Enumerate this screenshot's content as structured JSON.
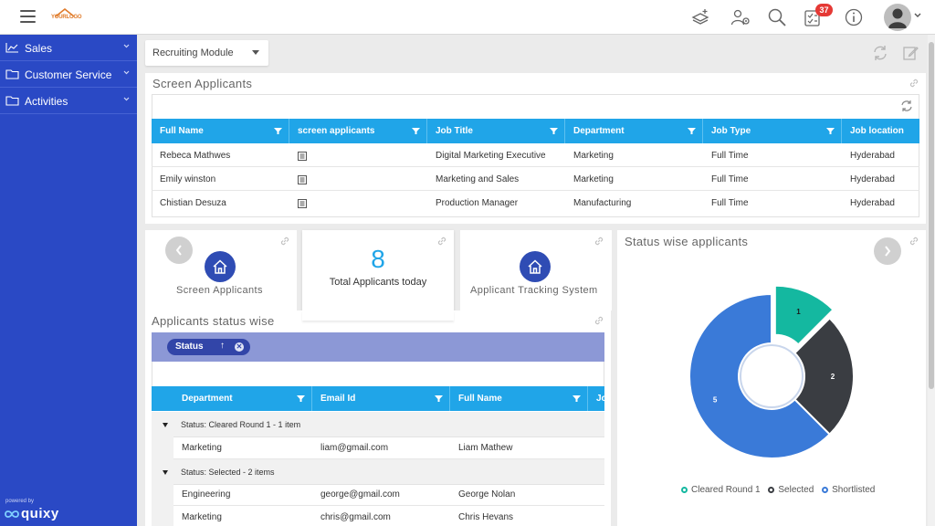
{
  "topbar": {
    "logo_text": "YOURLOGO",
    "notification_count": "37",
    "icons": [
      "menu-icon",
      "layers-add-icon",
      "users-settings-icon",
      "search-icon",
      "tasks-icon",
      "info-icon",
      "avatar-icon"
    ]
  },
  "sidebar": {
    "items": [
      {
        "label": "Sales",
        "icon": "chart-line-icon"
      },
      {
        "label": "Customer Service",
        "icon": "folder-icon"
      },
      {
        "label": "Activities",
        "icon": "folder-icon"
      }
    ],
    "powered_by": "powered by",
    "brand": "quixy"
  },
  "module_select": {
    "value": "Recruiting Module"
  },
  "screen_applicants": {
    "title": "Screen Applicants",
    "columns": [
      "Full Name",
      "screen applicants",
      "Job Title",
      "Department",
      "Job Type",
      "Job location"
    ],
    "rows": [
      {
        "full_name": "Rebeca Mathwes",
        "job_title": "Digital Marketing Executive",
        "department": "Marketing",
        "job_type": "Full Time",
        "job_location": "Hyderabad"
      },
      {
        "full_name": "Emily winston",
        "job_title": "Marketing and Sales",
        "department": "Marketing",
        "job_type": "Full Time",
        "job_location": "Hyderabad"
      },
      {
        "full_name": "Chistian Desuza",
        "job_title": "Production Manager",
        "department": "Manufacturing",
        "job_type": "Full Time",
        "job_location": "Hyderabad"
      }
    ]
  },
  "tiles": {
    "screen_applicants_label": "Screen Applicants",
    "total_count": "8",
    "total_label": "Total Applicants today",
    "tracking_label": "Applicant Tracking System"
  },
  "status_grid": {
    "title": "Applicants status wise",
    "group_chip": "Status",
    "columns": [
      "Department",
      "Email Id",
      "Full Name",
      "Jo"
    ],
    "groups": [
      {
        "label": "Status: Cleared Round 1 - 1 item",
        "rows": [
          {
            "department": "Marketing",
            "email": "liam@gmail.com",
            "full_name": "Liam Mathew"
          }
        ]
      },
      {
        "label": "Status: Selected - 2 items",
        "rows": [
          {
            "department": "Engineering",
            "email": "george@gmail.com",
            "full_name": "George Nolan"
          },
          {
            "department": "Marketing",
            "email": "chris@gmail.com",
            "full_name": "Chris Hevans"
          }
        ]
      }
    ]
  },
  "chart_data": {
    "type": "pie",
    "title": "Status wise applicants",
    "categories": [
      "Cleared Round 1",
      "Selected",
      "Shortlisted"
    ],
    "values": [
      1,
      2,
      5
    ],
    "colors": [
      "#14b8a0",
      "#3a3d42",
      "#3a7ad8"
    ],
    "legend_position": "bottom",
    "donut": true
  }
}
